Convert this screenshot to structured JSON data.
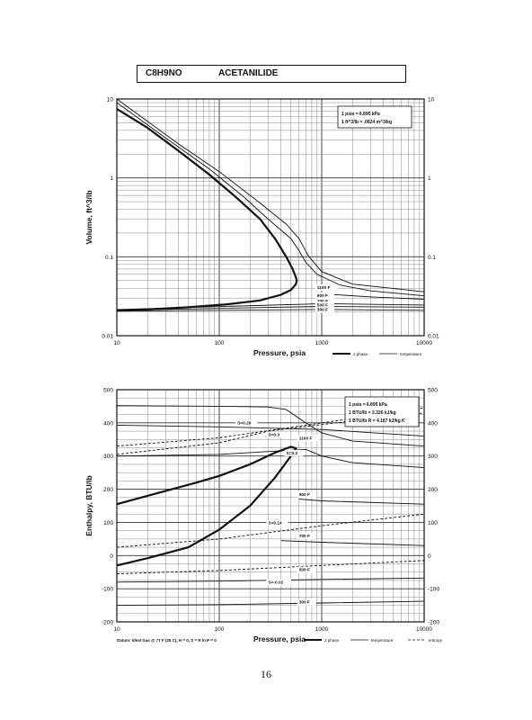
{
  "header": {
    "formula": "C8H9NO",
    "name": "ACETANILIDE"
  },
  "page_number": "16",
  "chart_data": [
    {
      "type": "line",
      "xscale": "log",
      "yscale": "log",
      "xlim": [
        10,
        10000
      ],
      "ylim": [
        0.01,
        10
      ],
      "xlabel": "Pressure,  psia",
      "ylabel": "Volume, ft^3/lb",
      "x_ticks": [
        "10",
        "100",
        "1000",
        "10000"
      ],
      "y_ticks": [
        "0.01",
        "0.1",
        "1",
        "10"
      ],
      "conversion_notes": [
        "1 psia  =  6.895 kPa",
        "1 ft^3/lb  =  .0624 m^3/kg"
      ],
      "legend": [
        "2 phase",
        "temperature"
      ],
      "series": [
        {
          "name": "2 phase",
          "style": "thick",
          "points": [
            [
              10,
              7.5
            ],
            [
              20,
              4.3
            ],
            [
              40,
              2.2
            ],
            [
              80,
              1.1
            ],
            [
              150,
              0.55
            ],
            [
              250,
              0.3
            ],
            [
              350,
              0.17
            ],
            [
              450,
              0.1
            ],
            [
              520,
              0.07
            ],
            [
              560,
              0.055
            ],
            [
              570,
              0.05
            ],
            [
              560,
              0.045
            ],
            [
              500,
              0.038
            ],
            [
              400,
              0.033
            ],
            [
              250,
              0.028
            ],
            [
              120,
              0.025
            ],
            [
              50,
              0.023
            ],
            [
              20,
              0.0215
            ],
            [
              10,
              0.021
            ]
          ]
        },
        {
          "name": "",
          "style": "thin",
          "points": [
            [
              10,
              9
            ],
            [
              30,
              3.2
            ],
            [
              80,
              1.3
            ],
            [
              180,
              0.55
            ],
            [
              300,
              0.3
            ],
            [
              500,
              0.17
            ],
            [
              600,
              0.12
            ],
            [
              700,
              0.085
            ],
            [
              900,
              0.06
            ],
            [
              1500,
              0.044
            ],
            [
              3000,
              0.037
            ],
            [
              10000,
              0.032
            ]
          ]
        },
        {
          "name": "",
          "style": "thin",
          "points": [
            [
              10,
              10
            ],
            [
              40,
              2.7
            ],
            [
              100,
              1.2
            ],
            [
              250,
              0.48
            ],
            [
              450,
              0.26
            ],
            [
              600,
              0.17
            ],
            [
              750,
              0.1
            ],
            [
              1000,
              0.065
            ],
            [
              2000,
              0.045
            ],
            [
              10000,
              0.036
            ]
          ]
        },
        {
          "name": "",
          "style": "thin",
          "points": [
            [
              1000,
              0.034
            ],
            [
              3000,
              0.031
            ],
            [
              10000,
              0.029
            ]
          ]
        },
        {
          "name": "",
          "style": "thin",
          "points": [
            [
              10,
              0.0215
            ],
            [
              1000,
              0.0255
            ],
            [
              10000,
              0.0245
            ]
          ]
        },
        {
          "name": "",
          "style": "thin",
          "points": [
            [
              10,
              0.021
            ],
            [
              1000,
              0.0235
            ],
            [
              10000,
              0.023
            ]
          ]
        },
        {
          "name": "",
          "style": "thin",
          "points": [
            [
              10,
              0.0205
            ],
            [
              1000,
              0.0215
            ],
            [
              10000,
              0.021
            ]
          ]
        }
      ],
      "annotations": [
        {
          "text": "1100 F",
          "x": 900,
          "y": 0.039
        },
        {
          "text": "900 F",
          "x": 900,
          "y": 0.031
        },
        {
          "text": "700 F",
          "x": 900,
          "y": 0.0265
        },
        {
          "text": "500 F",
          "x": 900,
          "y": 0.0235
        },
        {
          "text": "300 F",
          "x": 900,
          "y": 0.0205
        }
      ]
    },
    {
      "type": "line",
      "xscale": "log",
      "xlim": [
        10,
        10000
      ],
      "ylim": [
        -200,
        500
      ],
      "xlabel": "Pressure,  psia",
      "ylabel": "Enthalpy, BTU/lb",
      "x_ticks": [
        "10",
        "100",
        "1000",
        "10000"
      ],
      "y_ticks": [
        "-200",
        "-100",
        "0",
        "100",
        "200",
        "300",
        "400",
        "500"
      ],
      "conversion_notes": [
        "1 psia  =  6.895 kPa",
        "1 BTU/lb  =  2.326 kJ/kg",
        "1 BTU/lb R  =  4.187 kJ/kg K"
      ],
      "footnote": "Datum: Ideal Gas @ 77 F (25 C), H = 0, S = R ln P = 0",
      "legend": [
        "2 phase",
        "temperature",
        "entropy"
      ],
      "series": [
        {
          "name": "2 phase",
          "style": "thick",
          "points": [
            [
              10,
              155
            ],
            [
              30,
              195
            ],
            [
              60,
              220
            ],
            [
              100,
              240
            ],
            [
              200,
              275
            ],
            [
              350,
              310
            ],
            [
              500,
              328
            ],
            [
              560,
              323
            ],
            [
              500,
              300
            ],
            [
              350,
              235
            ],
            [
              200,
              150
            ],
            [
              100,
              78
            ],
            [
              50,
              25
            ],
            [
              20,
              -8
            ],
            [
              10,
              -30
            ]
          ]
        },
        {
          "name": "",
          "style": "thin",
          "points": [
            [
              10,
              452
            ],
            [
              100,
              450
            ],
            [
              300,
              448
            ],
            [
              450,
              440
            ],
            [
              700,
              400
            ],
            [
              1000,
              370
            ],
            [
              2000,
              345
            ],
            [
              10000,
              330
            ]
          ]
        },
        {
          "name": "",
          "style": "thin",
          "points": [
            [
              10,
              393
            ],
            [
              100,
              388
            ],
            [
              1000,
              380
            ],
            [
              10000,
              360
            ]
          ]
        },
        {
          "name": "",
          "style": "thin",
          "points": [
            [
              10,
              300
            ],
            [
              100,
              305
            ],
            [
              700,
              320
            ],
            [
              1000,
              300
            ],
            [
              2000,
              280
            ],
            [
              10000,
              265
            ]
          ]
        },
        {
          "name": "",
          "style": "thin",
          "points": [
            [
              600,
              170
            ],
            [
              1000,
              165
            ],
            [
              10000,
              155
            ]
          ]
        },
        {
          "name": "",
          "style": "thin",
          "points": [
            [
              400,
              45
            ],
            [
              1000,
              40
            ],
            [
              10000,
              30
            ]
          ]
        },
        {
          "name": "",
          "style": "thin",
          "points": [
            [
              10,
              -80
            ],
            [
              100,
              -77
            ],
            [
              1000,
              -72
            ],
            [
              10000,
              -68
            ]
          ]
        },
        {
          "name": "",
          "style": "thin",
          "points": [
            [
              10,
              -150
            ],
            [
              100,
              -148
            ],
            [
              1000,
              -143
            ],
            [
              10000,
              -138
            ]
          ]
        },
        {
          "name": "",
          "style": "dashed",
          "points": [
            [
              10,
              305
            ],
            [
              100,
              340
            ],
            [
              300,
              375
            ],
            [
              1000,
              395
            ],
            [
              10000,
              430
            ]
          ]
        },
        {
          "name": "",
          "style": "dashed",
          "points": [
            [
              10,
              330
            ],
            [
              100,
              355
            ],
            [
              1000,
              400
            ],
            [
              10000,
              445
            ]
          ]
        },
        {
          "name": "",
          "style": "dashed",
          "points": [
            [
              10,
              -55
            ],
            [
              100,
              -45
            ],
            [
              1000,
              -30
            ],
            [
              10000,
              -15
            ]
          ]
        },
        {
          "name": "",
          "style": "dashed",
          "points": [
            [
              10,
              25
            ],
            [
              100,
              50
            ],
            [
              1000,
              90
            ],
            [
              10000,
              125
            ]
          ]
        }
      ],
      "annotations": [
        {
          "text": "S=0.26",
          "x": 150,
          "y": 395
        },
        {
          "text": "S=0.3",
          "x": 300,
          "y": 360
        },
        {
          "text": "1100 F",
          "x": 600,
          "y": 350
        },
        {
          "text": "S=0.2",
          "x": 450,
          "y": 305
        },
        {
          "text": "900 F",
          "x": 600,
          "y": 180
        },
        {
          "text": "S=0.14",
          "x": 300,
          "y": 95
        },
        {
          "text": "700 F",
          "x": 600,
          "y": 55
        },
        {
          "text": "500 F",
          "x": 600,
          "y": -47
        },
        {
          "text": "S=-0.02",
          "x": 300,
          "y": -85
        },
        {
          "text": "300 F",
          "x": 600,
          "y": -145
        }
      ]
    }
  ]
}
